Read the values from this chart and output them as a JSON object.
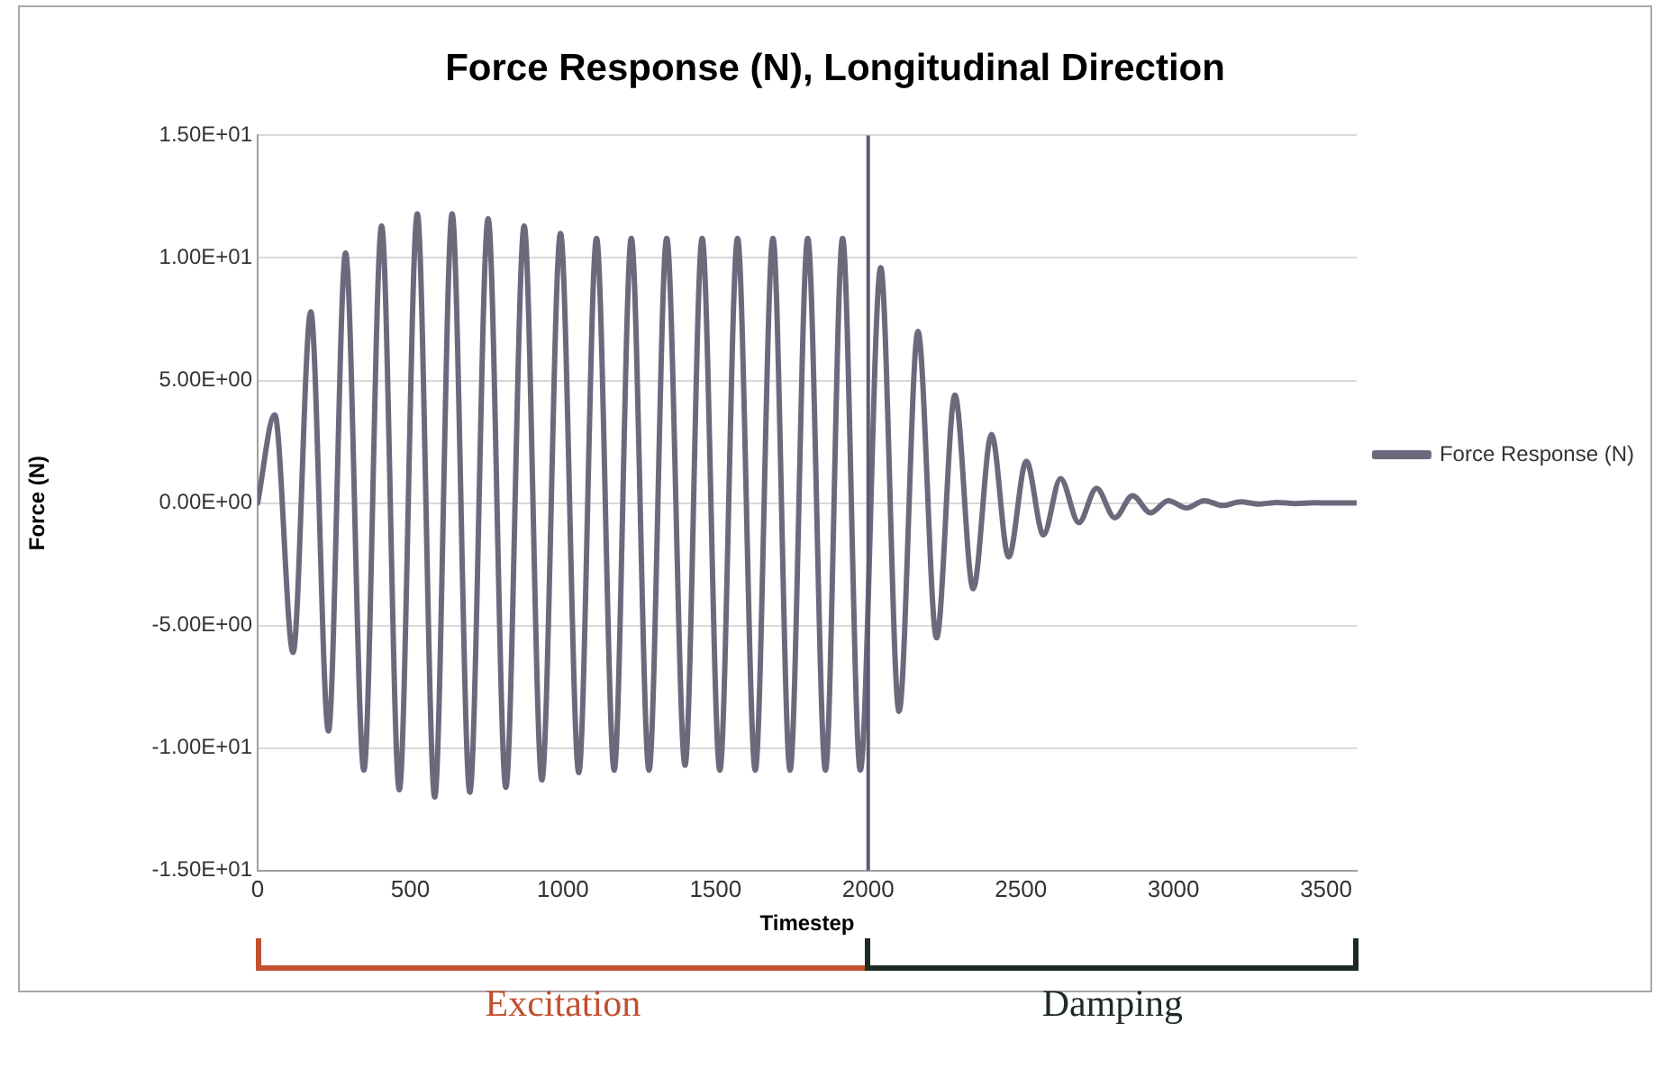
{
  "chart_data": {
    "type": "line",
    "title": "Force Response (N), Longitudinal Direction",
    "xlabel": "Timestep",
    "ylabel": "Force (N)",
    "x": [
      0,
      56,
      116,
      174,
      232,
      288,
      348,
      406,
      464,
      523,
      580,
      637,
      695,
      755,
      813,
      873,
      931,
      992,
      1052,
      1110,
      1168,
      1224,
      1282,
      1340,
      1400,
      1456,
      1514,
      1572,
      1630,
      1688,
      1744,
      1802,
      1860,
      1916,
      1974,
      2041,
      2101,
      2163,
      2224,
      2284,
      2344,
      2404,
      2460,
      2518,
      2574,
      2630,
      2690,
      2748,
      2808,
      2866,
      2925,
      2983,
      3043,
      3101,
      3161,
      3220,
      3280,
      3340,
      3400,
      3460,
      3520,
      3600
    ],
    "series": [
      {
        "name": "Force Response (N)",
        "color": "#6b6a7d",
        "values": [
          0,
          3.6,
          -6.1,
          7.8,
          -9.3,
          10.2,
          -10.9,
          11.3,
          -11.7,
          11.8,
          -12.0,
          11.8,
          -11.8,
          11.6,
          -11.6,
          11.3,
          -11.3,
          11.0,
          -11.0,
          10.8,
          -10.9,
          10.8,
          -10.9,
          10.8,
          -10.7,
          10.8,
          -10.9,
          10.8,
          -10.9,
          10.8,
          -10.9,
          10.8,
          -10.9,
          10.8,
          -10.9,
          9.6,
          -8.5,
          7.0,
          -5.5,
          4.4,
          -3.5,
          2.8,
          -2.2,
          1.7,
          -1.3,
          1.0,
          -0.8,
          0.6,
          -0.6,
          0.3,
          -0.4,
          0.1,
          -0.2,
          0.1,
          -0.1,
          0.05,
          -0.04,
          0.02,
          -0.02,
          0.01,
          0,
          0
        ]
      }
    ],
    "xlim": [
      0,
      3600
    ],
    "xticks": [
      0,
      500,
      1000,
      1500,
      2000,
      2500,
      3000,
      3500
    ],
    "ylim": [
      -15,
      15
    ],
    "yticks": [
      {
        "value": -15,
        "label": "-1.50E+01"
      },
      {
        "value": -10,
        "label": "-1.00E+01"
      },
      {
        "value": -5,
        "label": "-5.00E+00"
      },
      {
        "value": 0,
        "label": "0.00E+00"
      },
      {
        "value": 5,
        "label": "5.00E+00"
      },
      {
        "value": 10,
        "label": "1.00E+01"
      },
      {
        "value": 15,
        "label": "1.50E+01"
      }
    ],
    "grid": "y",
    "legend": "right",
    "marker": "none",
    "line_style": "solid",
    "ref_lines": [
      {
        "axis": "x",
        "value": 2000,
        "color": "#5b5b73"
      }
    ],
    "annotations": [
      "Excitation",
      "Damping"
    ]
  }
}
